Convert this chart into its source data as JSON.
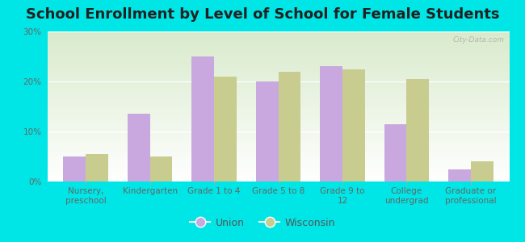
{
  "title": "School Enrollment by Level of School for Female Students",
  "categories": [
    "Nursery,\npreschool",
    "Kindergarten",
    "Grade 1 to 4",
    "Grade 5 to 8",
    "Grade 9 to\n12",
    "College\nundergrad",
    "Graduate or\nprofessional"
  ],
  "union_values": [
    5.0,
    13.5,
    25.0,
    20.0,
    23.0,
    11.5,
    2.5
  ],
  "wisconsin_values": [
    5.5,
    5.0,
    21.0,
    22.0,
    22.5,
    20.5,
    4.0
  ],
  "union_color": "#c9a8e0",
  "wisconsin_color": "#c8cc8e",
  "figure_bg": "#00e5e5",
  "ylim": [
    0,
    30
  ],
  "yticks": [
    0,
    10,
    20,
    30
  ],
  "ytick_labels": [
    "0%",
    "10%",
    "20%",
    "30%"
  ],
  "bar_width": 0.35,
  "legend_union": "Union",
  "legend_wisconsin": "Wisconsin",
  "title_fontsize": 13,
  "tick_fontsize": 7.5,
  "legend_fontsize": 9,
  "watermark": "City-Data.com"
}
